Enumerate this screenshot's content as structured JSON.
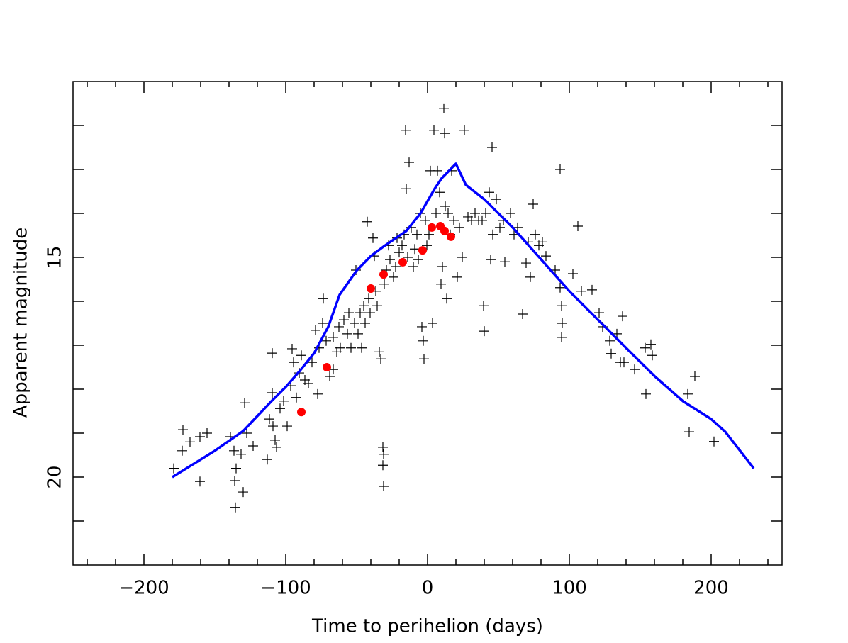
{
  "chart_data": {
    "type": "scatter",
    "xlabel": "Time to perihelion (days)",
    "ylabel": "Apparent magnitude",
    "xlim": [
      -250,
      250
    ],
    "ylim": [
      22,
      11
    ],
    "xticks": [
      {
        "value": -200,
        "label": "−200"
      },
      {
        "value": -100,
        "label": "−100"
      },
      0,
      100,
      200
    ],
    "xminor_ticks": [
      -240,
      -220,
      -180,
      -160,
      -140,
      -120,
      -80,
      -60,
      -40,
      -20,
      20,
      40,
      60,
      80,
      120,
      140,
      160,
      180,
      220,
      240
    ],
    "yticks": [
      15,
      20
    ],
    "yminor_ticks": [
      12,
      13,
      14,
      16,
      17,
      18,
      19,
      21
    ],
    "series": [
      {
        "marker": "plus",
        "color": "#000000",
        "x": [
          -179,
          -172.5,
          -173,
          -167.5,
          -160.5,
          -155.5,
          -160.5,
          -139,
          -136.5,
          -135,
          -136,
          -135.5,
          -131.5,
          -129,
          -127.5,
          -130,
          -123,
          -113,
          -109.5,
          -111.5,
          -109,
          -107.5,
          -106.5,
          -109.5,
          -104,
          -101.5,
          -99,
          -96.5,
          -95.5,
          -94.5,
          -92.5,
          -90.5,
          -89,
          -86.5,
          -84,
          -81.5,
          -79,
          -77.5,
          -76.5,
          -74,
          -73.5,
          -71.5,
          -69,
          -66.5,
          -66.5,
          -64,
          -62.5,
          -61.5,
          -59,
          -56.5,
          -55.5,
          -54,
          -51.5,
          -50.5,
          -49,
          -47.5,
          -46.5,
          -45,
          -44,
          -42.5,
          -41.5,
          -40.5,
          -38.5,
          -37.5,
          -36.5,
          -35.5,
          -34,
          -33,
          -31.5,
          -31,
          -31.5,
          -31,
          -30.5,
          -29,
          -27.5,
          -26.5,
          -24,
          -22.5,
          -21.5,
          -20,
          -18,
          -16.5,
          -15.5,
          -15,
          -14,
          -13,
          -11.5,
          -10,
          -9,
          -7.5,
          -6.5,
          -5,
          -4,
          -3,
          -2.5,
          -1.5,
          -0.5,
          1,
          2,
          3.5,
          4.5,
          6,
          7,
          8.5,
          9.5,
          10.5,
          11.5,
          12,
          12.5,
          13.5,
          14.5,
          16,
          17,
          18.5,
          21,
          22.5,
          24.5,
          26,
          28.5,
          31,
          33.5,
          36,
          38.5,
          39.5,
          40,
          41,
          43.5,
          44.5,
          45.5,
          46,
          48.5,
          51,
          53.5,
          54.5,
          58.5,
          61,
          63.5,
          67,
          69.5,
          71,
          72.5,
          74.5,
          76,
          78.5,
          81,
          83.5,
          90,
          93.5,
          93.5,
          94.5,
          95,
          94.5,
          102.5,
          106,
          108.5,
          116,
          121,
          123.5,
          128.5,
          129.5,
          133.5,
          136,
          137.5,
          138.5,
          146,
          153.5,
          154,
          157.5,
          158.5,
          183.5,
          184.5,
          188.5,
          202
        ],
        "values": [
          19.8,
          18.92,
          19.4,
          19.2,
          19.08,
          19.0,
          20.1,
          19.08,
          19.4,
          19.8,
          20.08,
          20.69,
          19.48,
          18.31,
          19.0,
          20.34,
          19.29,
          19.6,
          18.08,
          18.68,
          18.84,
          19.16,
          19.32,
          17.18,
          18.44,
          18.27,
          18.84,
          17.92,
          17.08,
          17.39,
          18.19,
          17.63,
          17.23,
          17.79,
          17.87,
          17.39,
          16.66,
          18.11,
          17.06,
          16.5,
          15.94,
          16.9,
          17.71,
          17.55,
          16.82,
          17.15,
          16.58,
          17.06,
          16.42,
          16.74,
          16.26,
          17.06,
          16.5,
          15.29,
          16.74,
          16.26,
          17.06,
          16.1,
          16.5,
          14.19,
          15.94,
          16.26,
          14.56,
          14.97,
          15.77,
          16.1,
          17.15,
          17.31,
          19.32,
          19.48,
          19.73,
          20.21,
          15.61,
          15.29,
          14.73,
          15.05,
          15.45,
          15.21,
          14.56,
          14.89,
          14.73,
          14.48,
          12.11,
          13.44,
          15.0,
          12.84,
          14.32,
          15.21,
          14.81,
          14.48,
          15.05,
          14.0,
          16.58,
          16.9,
          17.31,
          14.16,
          14.73,
          14.48,
          13.03,
          16.5,
          12.11,
          14.0,
          13.03,
          13.52,
          15.61,
          15.21,
          11.61,
          12.18,
          13.84,
          15.94,
          14.0,
          14.48,
          13.03,
          14.16,
          15.45,
          14.32,
          15.0,
          12.11,
          14.08,
          14.16,
          14.0,
          14.16,
          14.16,
          16.1,
          16.68,
          14.0,
          13.52,
          15.05,
          12.5,
          14.48,
          13.68,
          14.32,
          14.16,
          15.1,
          14.0,
          14.48,
          14.32,
          16.29,
          15.13,
          14.65,
          15.45,
          13.79,
          14.48,
          14.73,
          14.65,
          14.97,
          15.29,
          13.0,
          15.69,
          16.1,
          16.5,
          16.82,
          15.37,
          14.29,
          15.77,
          15.74,
          16.26,
          16.58,
          16.9,
          17.19,
          16.74,
          17.39,
          16.34,
          17.39,
          17.55,
          17.06,
          18.11,
          16.98,
          17.23,
          18.11,
          18.97,
          17.71,
          19.19
        ]
      },
      {
        "marker": "circle",
        "color": "#ff0000",
        "x": [
          -89,
          -71,
          -40,
          -31,
          -17.5,
          -3.5,
          3,
          9,
          12,
          16.5
        ],
        "values": [
          18.52,
          17.5,
          15.71,
          15.39,
          15.11,
          14.84,
          14.32,
          14.29,
          14.4,
          14.53
        ]
      },
      {
        "marker": "line",
        "color": "#0000ff",
        "x": [
          -180,
          -150,
          -130,
          -110,
          -100,
          -90,
          -80,
          -70,
          -62,
          -50,
          -40,
          -30,
          -15,
          -5,
          5,
          10,
          20,
          27,
          40,
          60,
          100,
          140,
          160,
          180,
          200,
          210,
          230
        ],
        "values": [
          20.0,
          19.4,
          18.95,
          18.27,
          17.95,
          17.58,
          17.18,
          16.58,
          15.85,
          15.3,
          14.97,
          14.73,
          14.4,
          14.0,
          13.44,
          13.2,
          12.87,
          13.35,
          13.68,
          14.32,
          15.77,
          17.06,
          17.7,
          18.27,
          18.68,
          18.97,
          19.8
        ]
      }
    ]
  }
}
